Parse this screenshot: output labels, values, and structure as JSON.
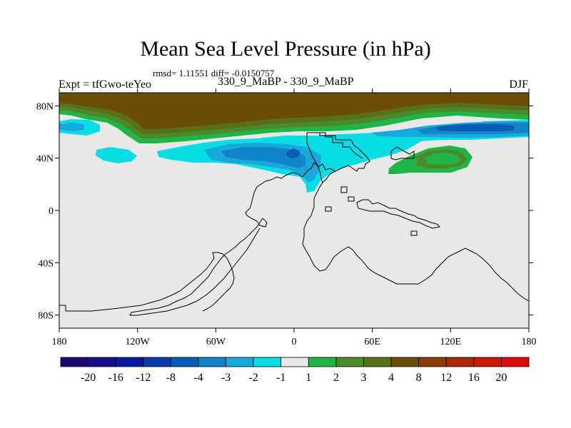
{
  "header": {
    "title": "Mean Sea Level Pressure (in hPa)",
    "stats": "rmsd= 1.11551 diff= -0.0150757",
    "left_label": "Expt = tfGwo-teYeo",
    "center_label": "330_9_MaBP - 330_9_MaBP",
    "right_label": "DJF"
  },
  "chart_data": {
    "type": "heatmap",
    "title": "Mean Sea Level Pressure (in hPa)",
    "subtitle": "330_9_MaBP - 330_9_MaBP",
    "annotations": [
      "rmsd= 1.11551 diff= -0.0150757",
      "Expt = tfGwo-teYeo",
      "DJF"
    ],
    "projection": "cylindrical equidistant",
    "x_range": [
      -180,
      180
    ],
    "y_range": [
      -90,
      90
    ],
    "x_ticks": [
      {
        "value": -180,
        "label": "180"
      },
      {
        "value": -120,
        "label": "120W"
      },
      {
        "value": -60,
        "label": "60W"
      },
      {
        "value": 0,
        "label": "0"
      },
      {
        "value": 60,
        "label": "60E"
      },
      {
        "value": 120,
        "label": "120E"
      },
      {
        "value": 180,
        "label": "180"
      }
    ],
    "y_ticks": [
      {
        "value": 80,
        "label": "80N"
      },
      {
        "value": 40,
        "label": "40N"
      },
      {
        "value": 0,
        "label": "0"
      },
      {
        "value": -40,
        "label": "40S"
      },
      {
        "value": -80,
        "label": "80S"
      }
    ],
    "colorbar": {
      "levels": [
        -20,
        -16,
        -12,
        -8,
        -4,
        -3,
        -2,
        -1,
        1,
        2,
        3,
        4,
        8,
        12,
        16,
        20
      ],
      "colors": [
        "#1e0a6e",
        "#180e8c",
        "#0a1aa0",
        "#0a3aa8",
        "#0b5cb4",
        "#1284c8",
        "#18a8dc",
        "#08dce4",
        "#e8e8e8",
        "#20b447",
        "#4a8a2a",
        "#58701a",
        "#6b4e06",
        "#8c3a08",
        "#a82a08",
        "#c81808",
        "#dc0a0a"
      ]
    },
    "background_value_range": [
      -1,
      1
    ]
  }
}
